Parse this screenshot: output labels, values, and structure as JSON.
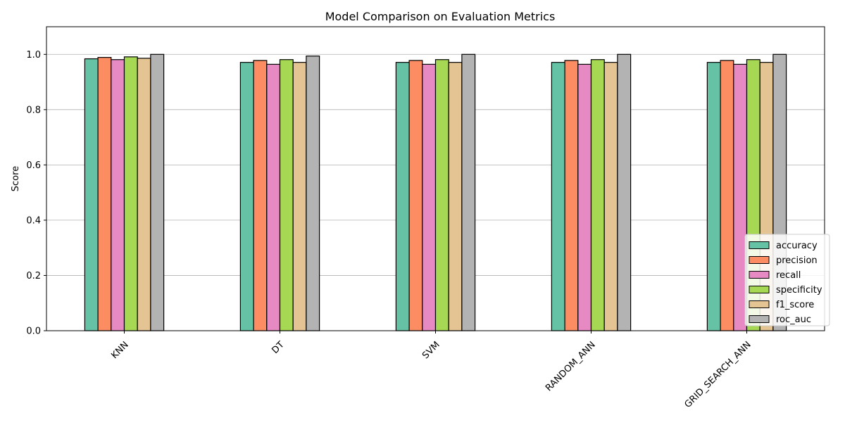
{
  "chart_data": {
    "type": "bar",
    "title": "Model Comparison on Evaluation Metrics",
    "xlabel": "",
    "ylabel": "Score",
    "ylim": [
      0,
      1.1
    ],
    "yticks": [
      0.0,
      0.2,
      0.4,
      0.6,
      0.8,
      1.0
    ],
    "ytick_labels": [
      "0.0",
      "0.2",
      "0.4",
      "0.6",
      "0.8",
      "1.0"
    ],
    "grid": "y",
    "legend_position": "lower-right",
    "categories": [
      "KNN",
      "DT",
      "SVM",
      "RANDOM_ANN",
      "GRID_SEARCH_ANN"
    ],
    "series": [
      {
        "name": "accuracy",
        "color": "#66c2a5",
        "values": [
          0.984,
          0.971,
          0.971,
          0.971,
          0.971
        ]
      },
      {
        "name": "precision",
        "color": "#fc8d62",
        "values": [
          0.989,
          0.978,
          0.978,
          0.978,
          0.978
        ]
      },
      {
        "name": "recall",
        "color": "#e78ac3",
        "values": [
          0.981,
          0.964,
          0.964,
          0.964,
          0.964
        ]
      },
      {
        "name": "specificity",
        "color": "#a6d854",
        "values": [
          0.991,
          0.981,
          0.981,
          0.981,
          0.981
        ]
      },
      {
        "name": "f1_score",
        "color": "#e5c494",
        "values": [
          0.986,
          0.971,
          0.971,
          0.971,
          0.971
        ]
      },
      {
        "name": "roc_auc",
        "color": "#b3b3b3",
        "values": [
          1.0,
          0.994,
          1.0,
          1.0,
          1.0
        ]
      }
    ]
  }
}
